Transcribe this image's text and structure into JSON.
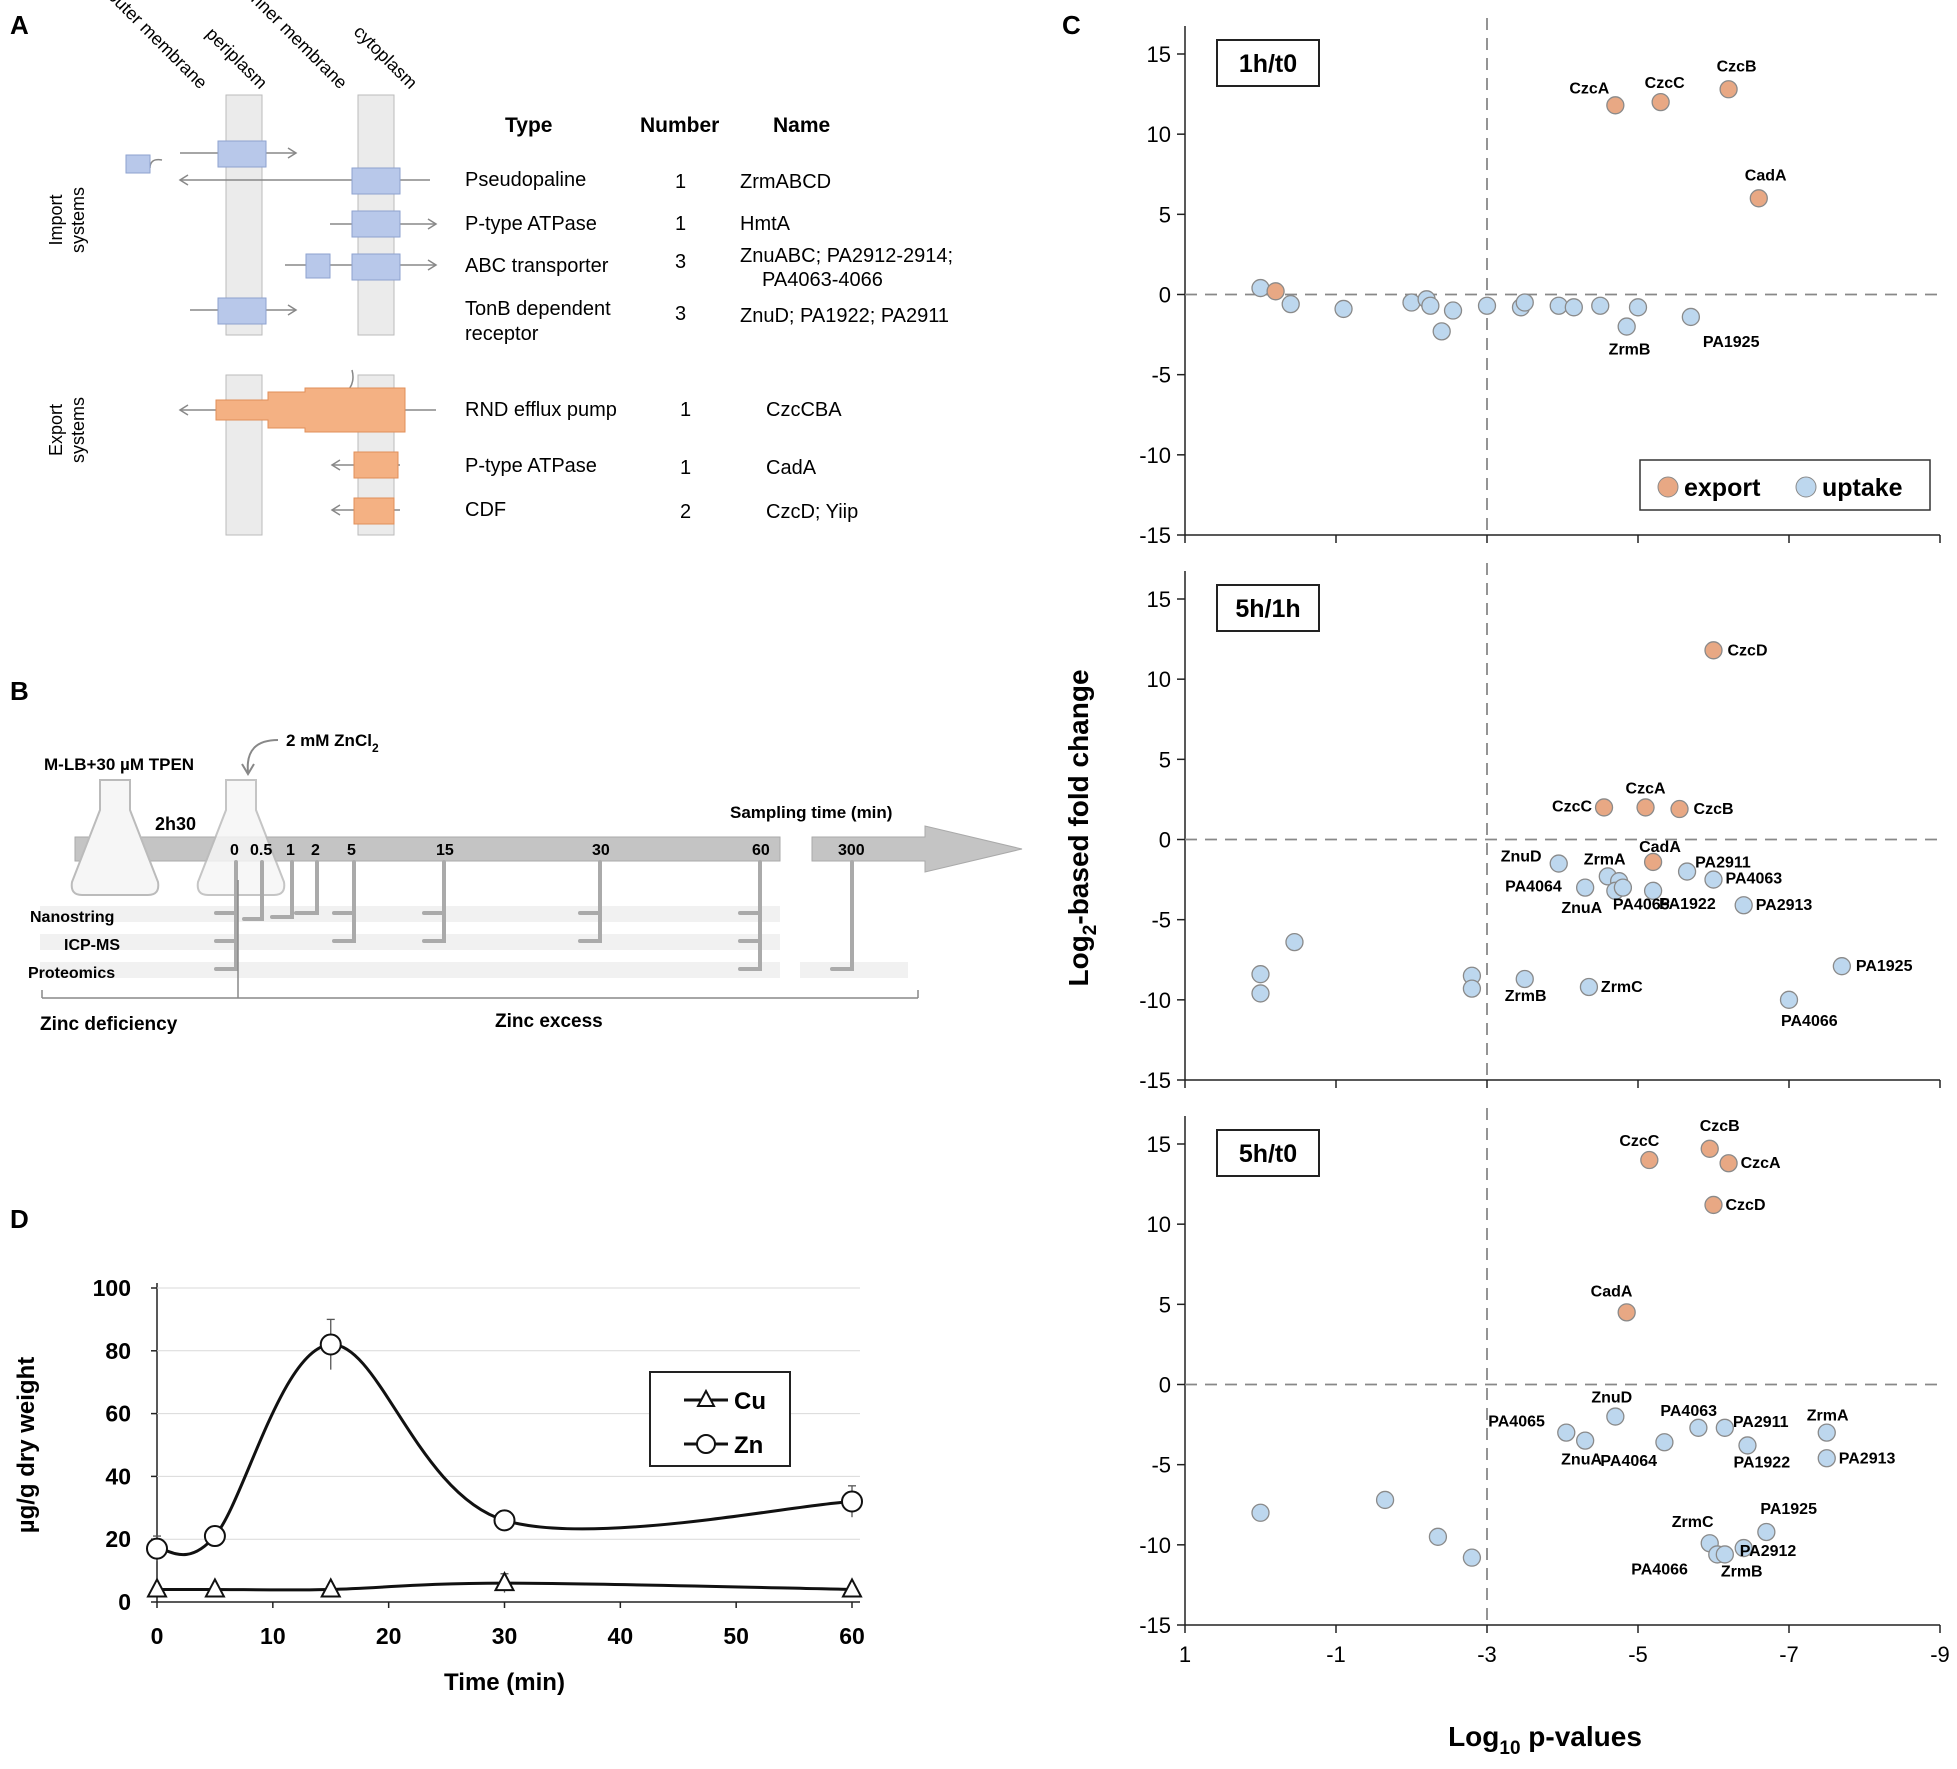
{
  "panel_letters": {
    "a": "A",
    "b": "B",
    "c": "C",
    "d": "D"
  },
  "panel_a": {
    "compartments": [
      "outer membrane",
      "periplasm",
      "inner membrane",
      "cytoplasm"
    ],
    "headers": {
      "type": "Type",
      "number": "Number",
      "name": "Name"
    },
    "import_label": [
      "Import",
      "systems"
    ],
    "export_label": [
      "Export",
      "systems"
    ],
    "rows": [
      {
        "type": [
          "Pseudopaline"
        ],
        "number": "1",
        "name": [
          "ZrmABCD"
        ]
      },
      {
        "type": [
          "P-type ATPase"
        ],
        "number": "1",
        "name": [
          "HmtA"
        ]
      },
      {
        "type": [
          "ABC transporter"
        ],
        "number": "3",
        "name": [
          "ZnuABC; PA2912-2914;",
          "PA4063-4066"
        ]
      },
      {
        "type": [
          "TonB dependent",
          "receptor"
        ],
        "number": "3",
        "name": [
          "ZnuD; PA1922; PA2911"
        ]
      },
      {
        "type": [
          "RND efflux pump"
        ],
        "number": "1",
        "name": [
          "CzcCBA"
        ]
      },
      {
        "type": [
          "P-type ATPase"
        ],
        "number": "1",
        "name": [
          "CadA"
        ]
      },
      {
        "type": [
          "CDF"
        ],
        "number": "2",
        "name": [
          "CzcD; Yiip"
        ]
      }
    ],
    "colors": {
      "import": "#b8c8ea",
      "export": "#f4b183",
      "membrane": "#e8e8e8"
    }
  },
  "panel_b": {
    "medium": "M-LB+30 µM TPEN",
    "zinc_addition": "2 mM ZnCl",
    "zinc_subscript": "2",
    "preculture": "2h30",
    "sampling_title": "Sampling time (min)",
    "timepoints": [
      "0",
      "0.5",
      "1",
      "2",
      "5",
      "15",
      "30",
      "60",
      "300"
    ],
    "methods": [
      "Nanostring",
      "ICP-MS",
      "Proteomics"
    ],
    "phases": [
      "Zinc deficiency",
      "Zinc excess"
    ]
  },
  "panel_c": {
    "y_label_pre": "Log",
    "y_label_sub": "2",
    "y_label_post": "-based fold change",
    "x_label_pre": "Log",
    "x_label_sub": "10",
    "x_label_post": " p-values",
    "x_ticks": [
      "1",
      "-1",
      "-3",
      "-5",
      "-7",
      "-9"
    ],
    "y_ticks": [
      "15",
      "10",
      "5",
      "0",
      "-5",
      "-10",
      "-15"
    ],
    "legend": {
      "export": "export",
      "uptake": "uptake"
    },
    "colors": {
      "export": "#e8a884",
      "uptake": "#bdd7ee"
    }
  },
  "chart_data": [
    {
      "type": "scatter",
      "title": "1h/t0",
      "xlim": [
        1,
        -9
      ],
      "ylim": [
        -15,
        15
      ],
      "threshold_x": -3,
      "threshold_y": 0,
      "points": [
        {
          "x": -4.7,
          "y": 11.8,
          "g": "export",
          "label": "CzcA"
        },
        {
          "x": -5.3,
          "y": 12.0,
          "g": "export",
          "label": "CzcC"
        },
        {
          "x": -6.2,
          "y": 12.8,
          "g": "export",
          "label": "CzcB"
        },
        {
          "x": -6.6,
          "y": 6.0,
          "g": "export",
          "label": "CadA"
        },
        {
          "x": 0.0,
          "y": 0.4,
          "g": "uptake"
        },
        {
          "x": -0.2,
          "y": 0.2,
          "g": "export"
        },
        {
          "x": -0.4,
          "y": -0.6,
          "g": "uptake"
        },
        {
          "x": -1.1,
          "y": -0.9,
          "g": "uptake"
        },
        {
          "x": -2.0,
          "y": -0.5,
          "g": "uptake"
        },
        {
          "x": -2.2,
          "y": -0.3,
          "g": "uptake"
        },
        {
          "x": -2.25,
          "y": -0.7,
          "g": "uptake"
        },
        {
          "x": -2.4,
          "y": -2.3,
          "g": "uptake"
        },
        {
          "x": -2.55,
          "y": -1.0,
          "g": "uptake"
        },
        {
          "x": -3.0,
          "y": -0.7,
          "g": "uptake"
        },
        {
          "x": -3.45,
          "y": -0.8,
          "g": "uptake"
        },
        {
          "x": -3.5,
          "y": -0.5,
          "g": "uptake"
        },
        {
          "x": -3.95,
          "y": -0.7,
          "g": "uptake"
        },
        {
          "x": -4.15,
          "y": -0.8,
          "g": "uptake"
        },
        {
          "x": -4.5,
          "y": -0.7,
          "g": "uptake"
        },
        {
          "x": -4.85,
          "y": -2.0,
          "g": "uptake",
          "label": "ZrmB"
        },
        {
          "x": -5.0,
          "y": -0.8,
          "g": "uptake"
        },
        {
          "x": -5.7,
          "y": -1.4,
          "g": "uptake",
          "label": "PA1925"
        }
      ]
    },
    {
      "type": "scatter",
      "title": "5h/1h",
      "xlim": [
        1,
        -9
      ],
      "ylim": [
        -15,
        15
      ],
      "threshold_x": -3,
      "threshold_y": 0,
      "points": [
        {
          "x": -6.0,
          "y": 11.8,
          "g": "export",
          "label": "CzcD"
        },
        {
          "x": -4.55,
          "y": 2.0,
          "g": "export",
          "label": "CzcC"
        },
        {
          "x": -5.1,
          "y": 2.0,
          "g": "export",
          "label": "CzcA"
        },
        {
          "x": -5.55,
          "y": 1.9,
          "g": "export",
          "label": "CzcB"
        },
        {
          "x": -5.2,
          "y": -1.4,
          "g": "export",
          "label": "CadA"
        },
        {
          "x": -3.95,
          "y": -1.5,
          "g": "uptake",
          "label": "ZnuD"
        },
        {
          "x": -4.6,
          "y": -2.3,
          "g": "uptake",
          "label": "ZrmA"
        },
        {
          "x": -4.75,
          "y": -2.6,
          "g": "uptake"
        },
        {
          "x": -5.65,
          "y": -2.0,
          "g": "uptake",
          "label": "PA2911"
        },
        {
          "x": -6.0,
          "y": -2.5,
          "g": "uptake",
          "label": "PA4063"
        },
        {
          "x": -4.3,
          "y": -3.0,
          "g": "uptake",
          "label": "PA4064"
        },
        {
          "x": -4.7,
          "y": -3.2,
          "g": "uptake",
          "label": "ZnuA"
        },
        {
          "x": -5.2,
          "y": -3.2,
          "g": "uptake",
          "label": "PA1922"
        },
        {
          "x": -6.4,
          "y": -4.1,
          "g": "uptake",
          "label": "PA2913"
        },
        {
          "x": -4.8,
          "y": -3.0,
          "g": "uptake",
          "label": "PA4065"
        },
        {
          "x": -0.45,
          "y": -6.4,
          "g": "uptake"
        },
        {
          "x": 0.0,
          "y": -8.4,
          "g": "uptake"
        },
        {
          "x": 0.0,
          "y": -9.6,
          "g": "uptake"
        },
        {
          "x": -2.8,
          "y": -8.5,
          "g": "uptake"
        },
        {
          "x": -2.8,
          "y": -9.3,
          "g": "uptake"
        },
        {
          "x": -3.5,
          "y": -8.7,
          "g": "uptake",
          "label": "ZrmB"
        },
        {
          "x": -4.35,
          "y": -9.2,
          "g": "uptake",
          "label": "ZrmC"
        },
        {
          "x": -7.7,
          "y": -7.9,
          "g": "uptake",
          "label": "PA1925"
        },
        {
          "x": -7.0,
          "y": -10.0,
          "g": "uptake",
          "label": "PA4066"
        }
      ]
    },
    {
      "type": "scatter",
      "title": "5h/t0",
      "xlim": [
        1,
        -9
      ],
      "ylim": [
        -15,
        15
      ],
      "threshold_x": -3,
      "threshold_y": 0,
      "points": [
        {
          "x": -5.15,
          "y": 14.0,
          "g": "export",
          "label": "CzcC"
        },
        {
          "x": -5.95,
          "y": 14.7,
          "g": "export",
          "label": "CzcB"
        },
        {
          "x": -6.2,
          "y": 13.8,
          "g": "export",
          "label": "CzcA"
        },
        {
          "x": -6.0,
          "y": 11.2,
          "g": "export",
          "label": "CzcD"
        },
        {
          "x": -4.85,
          "y": 4.5,
          "g": "export",
          "label": "CadA"
        },
        {
          "x": -4.7,
          "y": -2.0,
          "g": "uptake",
          "label": "ZnuD"
        },
        {
          "x": -4.05,
          "y": -3.0,
          "g": "uptake",
          "label": "PA4065"
        },
        {
          "x": -4.3,
          "y": -3.5,
          "g": "uptake",
          "label": "ZnuA"
        },
        {
          "x": -5.8,
          "y": -2.7,
          "g": "uptake",
          "label": "PA4063"
        },
        {
          "x": -6.15,
          "y": -2.7,
          "g": "uptake",
          "label": "PA2911"
        },
        {
          "x": -5.35,
          "y": -3.6,
          "g": "uptake",
          "label": "PA4064"
        },
        {
          "x": -6.45,
          "y": -3.8,
          "g": "uptake",
          "label": "PA1922"
        },
        {
          "x": -7.5,
          "y": -3.0,
          "g": "uptake",
          "label": "ZrmA"
        },
        {
          "x": -7.5,
          "y": -4.6,
          "g": "uptake",
          "label": "PA2913"
        },
        {
          "x": 0.0,
          "y": -8.0,
          "g": "uptake"
        },
        {
          "x": -1.65,
          "y": -7.2,
          "g": "uptake"
        },
        {
          "x": -2.35,
          "y": -9.5,
          "g": "uptake"
        },
        {
          "x": -2.8,
          "y": -10.8,
          "g": "uptake"
        },
        {
          "x": -5.95,
          "y": -9.9,
          "g": "uptake",
          "label": "ZrmC"
        },
        {
          "x": -6.7,
          "y": -9.2,
          "g": "uptake",
          "label": "PA1925"
        },
        {
          "x": -6.4,
          "y": -10.2,
          "g": "uptake",
          "label": "PA2912"
        },
        {
          "x": -6.05,
          "y": -10.6,
          "g": "uptake",
          "label": "PA4066"
        },
        {
          "x": -6.15,
          "y": -10.6,
          "g": "uptake",
          "label": "ZrmB"
        }
      ]
    },
    {
      "type": "line",
      "title": "",
      "xlabel": "Time (min)",
      "ylabel": "µg/g dry weight",
      "xlim": [
        0,
        60
      ],
      "ylim": [
        0,
        100
      ],
      "x_ticks": [
        0,
        10,
        20,
        30,
        40,
        50,
        60
      ],
      "y_ticks": [
        0,
        20,
        40,
        60,
        80,
        100
      ],
      "legend": [
        "Cu",
        "Zn"
      ],
      "series": [
        {
          "name": "Zn",
          "marker": "circle",
          "x": [
            0,
            5,
            15,
            30,
            60
          ],
          "y": [
            17,
            21,
            82,
            26,
            32
          ],
          "err": [
            4,
            2,
            8,
            3,
            5
          ]
        },
        {
          "name": "Cu",
          "marker": "triangle",
          "x": [
            0,
            5,
            15,
            30,
            60
          ],
          "y": [
            4,
            4,
            4,
            6,
            4
          ],
          "err": [
            1,
            1,
            1,
            3,
            1
          ]
        }
      ]
    }
  ]
}
